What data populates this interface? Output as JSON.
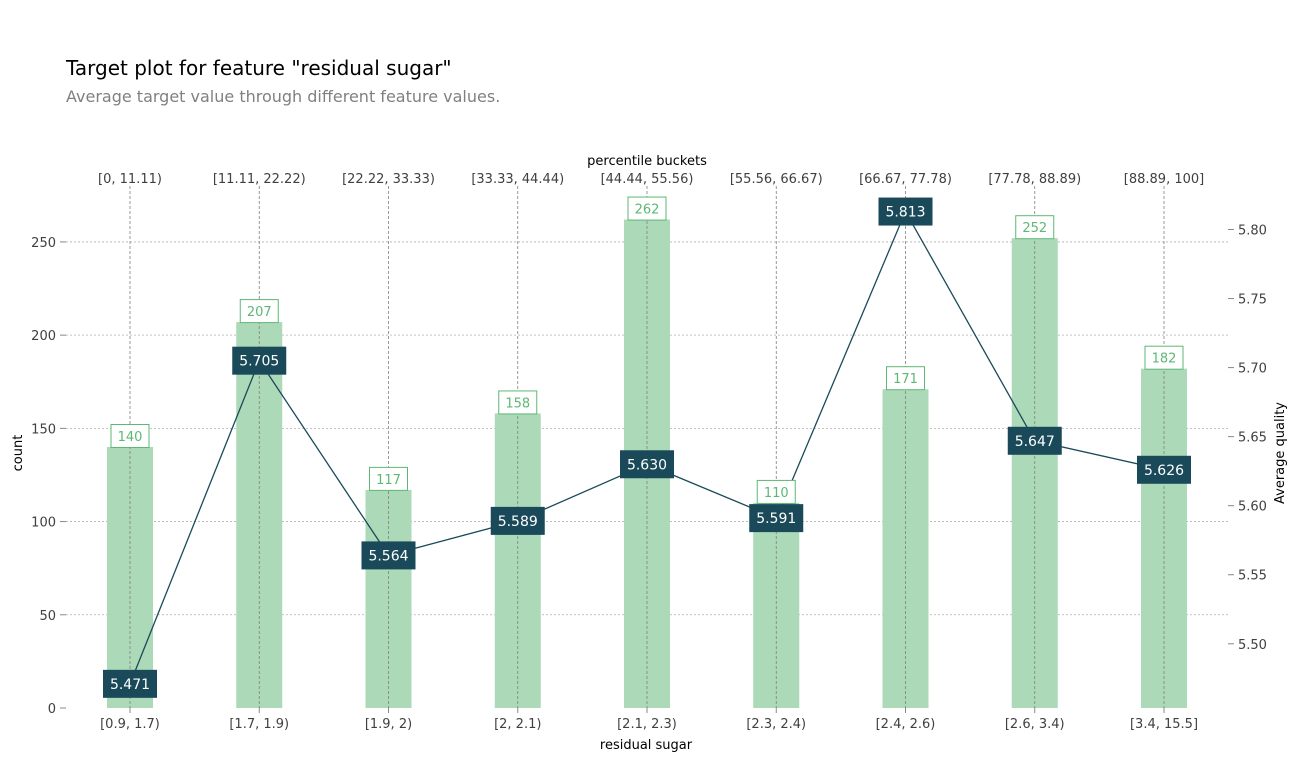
{
  "chart_data": {
    "type": "bar+line",
    "title": "Target plot for feature \"residual sugar\"",
    "subtitle": "Average target value through different feature values.",
    "xlabel": "residual sugar",
    "ylabel_left": "count",
    "ylabel_right": "Average quality",
    "top_axis_label": "percentile buckets",
    "categories": [
      "[0.9, 1.7)",
      "[1.7, 1.9)",
      "[1.9, 2)",
      "[2, 2.1)",
      "[2.1, 2.3)",
      "[2.3, 2.4)",
      "[2.4, 2.6)",
      "[2.6, 3.4)",
      "[3.4, 15.5]"
    ],
    "percentile_buckets": [
      "[0, 11.11)",
      "[11.11, 22.22)",
      "[22.22, 33.33)",
      "[33.33, 44.44)",
      "[44.44, 55.56)",
      "[55.56, 66.67)",
      "[66.67, 77.78)",
      "[77.78, 88.89)",
      "[88.89, 100]"
    ],
    "counts": [
      140,
      207,
      117,
      158,
      262,
      110,
      171,
      252,
      182
    ],
    "averages": [
      5.471,
      5.705,
      5.564,
      5.589,
      5.63,
      5.591,
      5.813,
      5.647,
      5.626
    ],
    "left_ylim": [
      0,
      280
    ],
    "left_ticks": [
      0,
      50,
      100,
      150,
      200,
      250
    ],
    "right_ylim": [
      5.4535,
      5.8315
    ],
    "right_ticks": [
      5.5,
      5.55,
      5.6,
      5.65,
      5.7,
      5.75,
      5.8
    ],
    "grid": true,
    "colors": {
      "bar": "#acd9b7",
      "bar_label": "#5cb874",
      "line": "#1a4a5a",
      "grid": "#b0b0b0",
      "vline": "#808080",
      "tick_text": "#404040"
    }
  }
}
